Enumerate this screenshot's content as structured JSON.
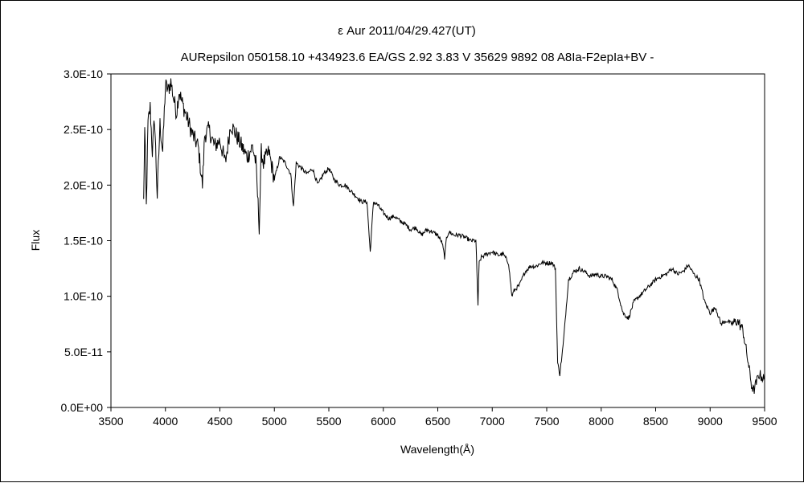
{
  "chart_data": {
    "type": "line",
    "title": "ε Aur 2011/04/29.427(UT)",
    "subtitle": "AURepsilon 050158.10 +434923.6 EA/GS 2.92 3.83 V 35629 9892 08 A8Ia-F2epIa+BV -",
    "xlabel": "Wavelength(Å)",
    "ylabel": "Flux",
    "xlim": [
      3500,
      9500
    ],
    "ylim": [
      0,
      3e-10
    ],
    "x_ticks": [
      "3500",
      "4000",
      "4500",
      "5000",
      "5500",
      "6000",
      "6500",
      "7000",
      "7500",
      "8000",
      "8500",
      "9000",
      "9500"
    ],
    "y_ticks": [
      "0.0E+00",
      "5.0E-11",
      "1.0E-10",
      "1.5E-10",
      "2.0E-10",
      "2.5E-10",
      "3.0E-10"
    ],
    "grid": false,
    "legend": "none",
    "line_color": "#000000",
    "series": [
      {
        "x": [
          3800,
          3810,
          3825,
          3840,
          3860,
          3880,
          3900,
          3925,
          3950,
          3975,
          4000,
          4025,
          4050,
          4075,
          4102,
          4125,
          4150,
          4200,
          4250,
          4300,
          4340,
          4360,
          4400,
          4450,
          4500,
          4550,
          4600,
          4650,
          4700,
          4750,
          4800,
          4830,
          4861,
          4880,
          4900,
          4950,
          5000,
          5050,
          5100,
          5150,
          5175,
          5200,
          5250,
          5300,
          5350,
          5400,
          5450,
          5500,
          5550,
          5600,
          5650,
          5700,
          5750,
          5800,
          5850,
          5880,
          5893,
          5910,
          5950,
          6000,
          6050,
          6100,
          6150,
          6200,
          6250,
          6300,
          6350,
          6400,
          6450,
          6500,
          6540,
          6563,
          6580,
          6600,
          6650,
          6700,
          6750,
          6800,
          6850,
          6869,
          6880,
          6900,
          6950,
          7000,
          7050,
          7100,
          7150,
          7180,
          7200,
          7250,
          7300,
          7350,
          7400,
          7450,
          7500,
          7550,
          7580,
          7600,
          7620,
          7650,
          7700,
          7750,
          7800,
          7850,
          7900,
          7950,
          8000,
          8050,
          8100,
          8150,
          8200,
          8250,
          8300,
          8350,
          8400,
          8450,
          8500,
          8550,
          8600,
          8650,
          8700,
          8750,
          8800,
          8850,
          8900,
          8950,
          9000,
          9050,
          9100,
          9150,
          9200,
          9250,
          9300,
          9350,
          9380,
          9400,
          9450,
          9500
        ],
        "y": [
          1.85e-10,
          2.5e-10,
          1.8e-10,
          2.55e-10,
          2.7e-10,
          2.3e-10,
          2.6e-10,
          1.9e-10,
          2.55e-10,
          2.3e-10,
          2.9e-10,
          2.85e-10,
          2.93e-10,
          2.78e-10,
          2.65e-10,
          2.85e-10,
          2.75e-10,
          2.6e-10,
          2.45e-10,
          2.35e-10,
          2e-10,
          2.45e-10,
          2.5e-10,
          2.35e-10,
          2.4e-10,
          2.2e-10,
          2.55e-10,
          2.45e-10,
          2.35e-10,
          2.25e-10,
          2.35e-10,
          2.2e-10,
          1.63e-10,
          2.3e-10,
          2.2e-10,
          2.3e-10,
          2.05e-10,
          2.25e-10,
          2.2e-10,
          2.1e-10,
          1.8e-10,
          2.2e-10,
          2.15e-10,
          2.1e-10,
          2.15e-10,
          2e-10,
          2.1e-10,
          2.15e-10,
          2.05e-10,
          2e-10,
          2e-10,
          1.95e-10,
          1.9e-10,
          1.85e-10,
          1.85e-10,
          1.4e-10,
          1.6e-10,
          1.85e-10,
          1.82e-10,
          1.75e-10,
          1.7e-10,
          1.72e-10,
          1.68e-10,
          1.65e-10,
          1.6e-10,
          1.62e-10,
          1.55e-10,
          1.6e-10,
          1.58e-10,
          1.55e-10,
          1.48e-10,
          1.35e-10,
          1.52e-10,
          1.58e-10,
          1.55e-10,
          1.55e-10,
          1.53e-10,
          1.5e-10,
          1.5e-10,
          9.2e-11,
          1.3e-10,
          1.35e-10,
          1.38e-10,
          1.4e-10,
          1.37e-10,
          1.38e-10,
          1.3e-10,
          1e-10,
          1.05e-10,
          1.1e-10,
          1.22e-10,
          1.27e-10,
          1.27e-10,
          1.3e-10,
          1.3e-10,
          1.3e-10,
          1.25e-10,
          4e-11,
          3e-11,
          5.5e-11,
          1.15e-10,
          1.22e-10,
          1.25e-10,
          1.22e-10,
          1.18e-10,
          1.2e-10,
          1.18e-10,
          1.18e-10,
          1.15e-10,
          1.05e-10,
          8.5e-11,
          8e-11,
          9.5e-11,
          1e-10,
          1.05e-10,
          1.1e-10,
          1.15e-10,
          1.18e-10,
          1.2e-10,
          1.25e-10,
          1.2e-10,
          1.22e-10,
          1.28e-10,
          1.2e-10,
          1.15e-10,
          9.5e-11,
          8.5e-11,
          9e-11,
          7.5e-11,
          7.8e-11,
          7.5e-11,
          7.8e-11,
          7e-11,
          4e-11,
          2e-11,
          1.5e-11,
          3e-11,
          2.5e-11
        ]
      }
    ]
  }
}
